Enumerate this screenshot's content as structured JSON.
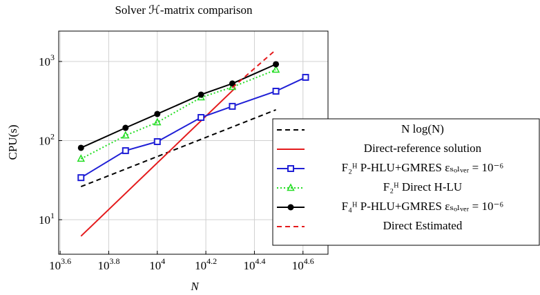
{
  "chart_data": {
    "type": "line",
    "title": "Solver ℋ-matrix comparison",
    "x_label": "N",
    "y_label": "CPU(s)",
    "x_log": true,
    "y_log": true,
    "grid": true,
    "legend_position": "right",
    "xlim": [
      3926,
      50470
    ],
    "ylim": [
      3.66,
      2421
    ],
    "xticks": [
      {
        "value": 3981,
        "label": "10^3.6"
      },
      {
        "value": 6310,
        "label": "10^3.8"
      },
      {
        "value": 10000,
        "label": "10^4"
      },
      {
        "value": 15849,
        "label": "10^4.2"
      },
      {
        "value": 25119,
        "label": "10^4.4"
      },
      {
        "value": 39811,
        "label": "10^4.6"
      }
    ],
    "yticks": [
      {
        "value": 10,
        "label": "10^1"
      },
      {
        "value": 100,
        "label": "10^2"
      },
      {
        "value": 1000,
        "label": "10^3"
      }
    ],
    "series": [
      {
        "name": "N log(N)",
        "color": "#000000",
        "dash": "dashed",
        "x": [
          4850,
          30800
        ],
        "values": [
          26.2,
          245
        ]
      },
      {
        "name": "Direct-reference solution",
        "color": "#e41a1c",
        "dash": "solid",
        "x": [
          4850,
          21000
        ],
        "values": [
          6.2,
          466
        ]
      },
      {
        "name": "F₂ᴴ  P-HLU+GMRES εₛₒₗᵥₑᵣ = 10⁻⁶",
        "color": "#1f1fd6",
        "dash": "solid",
        "marker": "square",
        "x": [
          4850,
          7400,
          10000,
          15140,
          20370,
          30800,
          40800
        ],
        "values": [
          34,
          74.6,
          97,
          196,
          271,
          421,
          630
        ]
      },
      {
        "name": "F₂ᴴ  Direct H-LU",
        "color": "#22dd22",
        "dash": "dotted",
        "marker": "triangle",
        "x": [
          4850,
          7400,
          10000,
          15140,
          20370,
          30800
        ],
        "values": [
          58.8,
          116,
          170,
          351,
          475,
          785
        ]
      },
      {
        "name": "F₄ᴴ  P-HLU+GMRES εₛₒₗᵥₑᵣ = 10⁻⁶",
        "color": "#000000",
        "dash": "solid",
        "marker": "circle",
        "x": [
          4850,
          7400,
          10000,
          15140,
          20370,
          30800
        ],
        "values": [
          81,
          145,
          217,
          381,
          526,
          923
        ]
      },
      {
        "name": "Direct Estimated",
        "color": "#e41a1c",
        "dash": "dashed",
        "x": [
          20370,
          30800
        ],
        "values": [
          466,
          1407
        ]
      }
    ]
  }
}
